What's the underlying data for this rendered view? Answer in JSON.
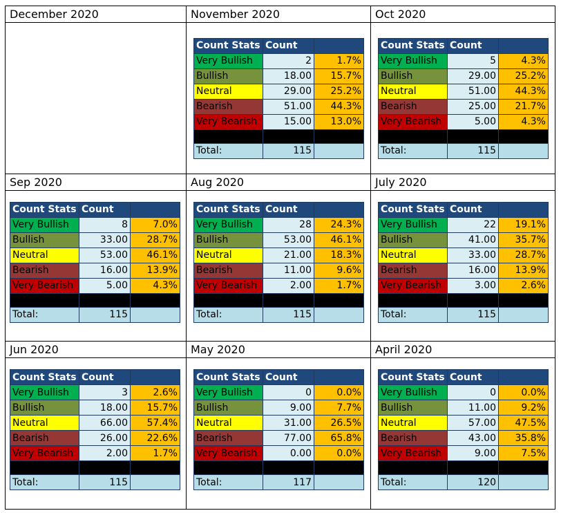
{
  "headers": {
    "stat": "Count Stats",
    "count": "Count",
    "total": "Total:"
  },
  "categories": [
    "Very Bullish",
    "Bullish",
    "Neutral",
    "Bearish",
    "Very Bearish"
  ],
  "months": [
    {
      "title": "December 2020",
      "table": null
    },
    {
      "title": "November 2020",
      "table": {
        "counts": [
          "2",
          "18.00",
          "29.00",
          "51.00",
          "15.00"
        ],
        "pcts": [
          "1.7%",
          "15.7%",
          "25.2%",
          "44.3%",
          "13.0%"
        ],
        "total": "115"
      }
    },
    {
      "title": "Oct 2020",
      "table": {
        "counts": [
          "5",
          "29.00",
          "51.00",
          "25.00",
          "5.00"
        ],
        "pcts": [
          "4.3%",
          "25.2%",
          "44.3%",
          "21.7%",
          "4.3%"
        ],
        "total": "115"
      }
    },
    {
      "title": "Sep 2020",
      "table": {
        "counts": [
          "8",
          "33.00",
          "53.00",
          "16.00",
          "5.00"
        ],
        "pcts": [
          "7.0%",
          "28.7%",
          "46.1%",
          "13.9%",
          "4.3%"
        ],
        "total": "115"
      }
    },
    {
      "title": "Aug 2020",
      "table": {
        "counts": [
          "28",
          "53.00",
          "21.00",
          "11.00",
          "2.00"
        ],
        "pcts": [
          "24.3%",
          "46.1%",
          "18.3%",
          "9.6%",
          "1.7%"
        ],
        "total": "115"
      }
    },
    {
      "title": "July 2020",
      "table": {
        "counts": [
          "22",
          "41.00",
          "33.00",
          "16.00",
          "3.00"
        ],
        "pcts": [
          "19.1%",
          "35.7%",
          "28.7%",
          "13.9%",
          "2.6%"
        ],
        "total": "115"
      }
    },
    {
      "title": "Jun 2020",
      "table": {
        "counts": [
          "3",
          "18.00",
          "66.00",
          "26.00",
          "2.00"
        ],
        "pcts": [
          "2.6%",
          "15.7%",
          "57.4%",
          "22.6%",
          "1.7%"
        ],
        "total": "115"
      }
    },
    {
      "title": "May 2020",
      "table": {
        "counts": [
          "0",
          "9.00",
          "31.00",
          "77.00",
          "0.00"
        ],
        "pcts": [
          "0.0%",
          "7.7%",
          "26.5%",
          "65.8%",
          "0.0%"
        ],
        "total": "117"
      }
    },
    {
      "title": "April 2020",
      "table": {
        "counts": [
          "0",
          "11.00",
          "57.00",
          "43.00",
          "9.00"
        ],
        "pcts": [
          "0.0%",
          "9.2%",
          "47.5%",
          "35.8%",
          "7.5%"
        ],
        "total": "120"
      }
    }
  ],
  "colors": {
    "header": "#1f497d",
    "very_bullish": "#00b050",
    "bullish": "#76923c",
    "neutral": "#ffff00",
    "bearish": "#953734",
    "very_bearish": "#c00000",
    "count_cell": "#dbeef4",
    "percent_cell": "#ffc000",
    "total_row": "#b7dde8"
  }
}
